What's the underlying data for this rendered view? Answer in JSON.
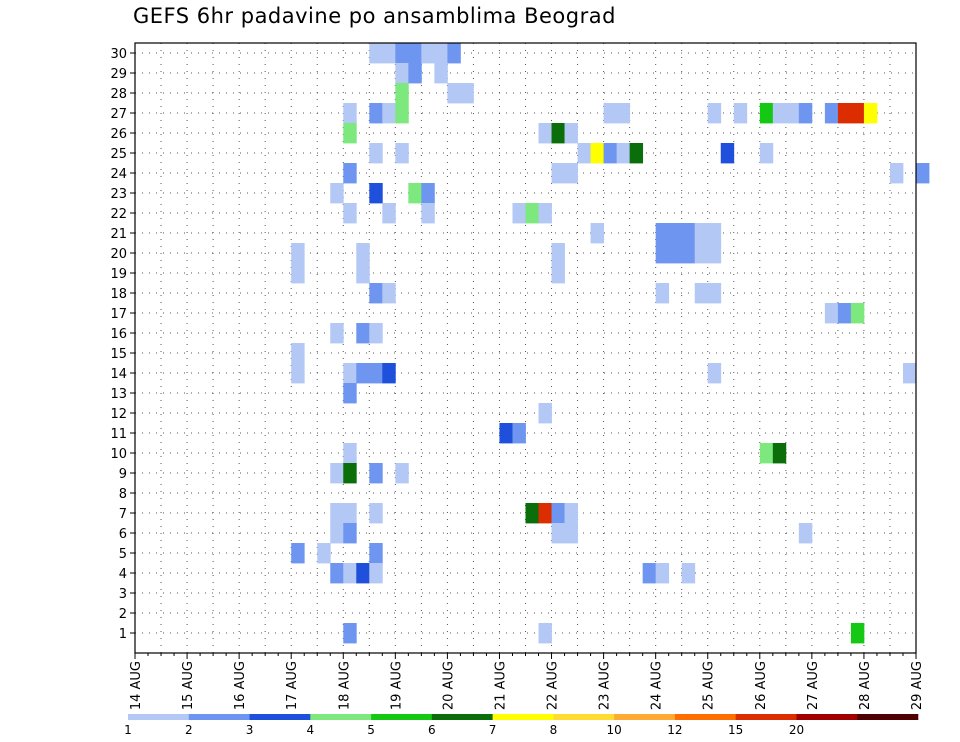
{
  "chart_data": {
    "type": "heatmap",
    "title": "GEFS 6hr padavine po ansamblima Beograd",
    "xlabel": "",
    "ylabel": "",
    "x_ticks": [
      "14 AUG",
      "15 AUG",
      "16 AUG",
      "17 AUG",
      "18 AUG",
      "19 AUG",
      "20 AUG",
      "21 AUG",
      "22 AUG",
      "23 AUG",
      "24 AUG",
      "25 AUG",
      "26 AUG",
      "27 AUG",
      "28 AUG",
      "29 AUG"
    ],
    "x_unit": "6-hour step (4 steps per day) starting 14 AUG",
    "y_ticks": [
      1,
      2,
      3,
      4,
      5,
      6,
      7,
      8,
      9,
      10,
      11,
      12,
      13,
      14,
      15,
      16,
      17,
      18,
      19,
      20,
      21,
      22,
      23,
      24,
      25,
      26,
      27,
      28,
      29,
      30
    ],
    "grid": true,
    "colorbar": {
      "labels": [
        "1",
        "2",
        "3",
        "4",
        "5",
        "6",
        "7",
        "8",
        "10",
        "12",
        "15",
        "20"
      ],
      "colors": [
        "#b4c8f5",
        "#6e96f0",
        "#1e50dc",
        "#7de87d",
        "#14c814",
        "#0a6e0a",
        "#ffff00",
        "#ffdc32",
        "#ffaa32",
        "#ff6e00",
        "#dc2d00",
        "#a00000",
        "#500000"
      ]
    },
    "cells": [
      {
        "member": 30,
        "step": 18,
        "cls": 1
      },
      {
        "member": 30,
        "step": 19,
        "cls": 1
      },
      {
        "member": 30,
        "step": 20,
        "cls": 2
      },
      {
        "member": 30,
        "step": 21,
        "cls": 2
      },
      {
        "member": 30,
        "step": 22,
        "cls": 1
      },
      {
        "member": 30,
        "step": 23,
        "cls": 1
      },
      {
        "member": 30,
        "step": 24,
        "cls": 2
      },
      {
        "member": 29,
        "step": 20,
        "cls": 1
      },
      {
        "member": 29,
        "step": 21,
        "cls": 2
      },
      {
        "member": 29,
        "step": 23,
        "cls": 1
      },
      {
        "member": 28,
        "step": 20,
        "cls": 4
      },
      {
        "member": 28,
        "step": 24,
        "cls": 1
      },
      {
        "member": 28,
        "step": 25,
        "cls": 1
      },
      {
        "member": 27,
        "step": 16,
        "cls": 1
      },
      {
        "member": 27,
        "step": 18,
        "cls": 2
      },
      {
        "member": 27,
        "step": 19,
        "cls": 1
      },
      {
        "member": 27,
        "step": 20,
        "cls": 4
      },
      {
        "member": 27,
        "step": 36,
        "cls": 1
      },
      {
        "member": 27,
        "step": 37,
        "cls": 1
      },
      {
        "member": 27,
        "step": 44,
        "cls": 1
      },
      {
        "member": 27,
        "step": 46,
        "cls": 1
      },
      {
        "member": 27,
        "step": 48,
        "cls": 5
      },
      {
        "member": 27,
        "step": 49,
        "cls": 1
      },
      {
        "member": 27,
        "step": 50,
        "cls": 1
      },
      {
        "member": 27,
        "step": 51,
        "cls": 2
      },
      {
        "member": 27,
        "step": 53,
        "cls": 2
      },
      {
        "member": 27,
        "step": 54,
        "cls": 11
      },
      {
        "member": 27,
        "step": 55,
        "cls": 11
      },
      {
        "member": 27,
        "step": 56,
        "cls": 7
      },
      {
        "member": 26,
        "step": 16,
        "cls": 4
      },
      {
        "member": 26,
        "step": 31,
        "cls": 1
      },
      {
        "member": 26,
        "step": 32,
        "cls": 6
      },
      {
        "member": 26,
        "step": 33,
        "cls": 1
      },
      {
        "member": 25,
        "step": 18,
        "cls": 1
      },
      {
        "member": 25,
        "step": 20,
        "cls": 1
      },
      {
        "member": 25,
        "step": 34,
        "cls": 1
      },
      {
        "member": 25,
        "step": 35,
        "cls": 7
      },
      {
        "member": 25,
        "step": 36,
        "cls": 2
      },
      {
        "member": 25,
        "step": 37,
        "cls": 1
      },
      {
        "member": 25,
        "step": 38,
        "cls": 6
      },
      {
        "member": 25,
        "step": 45,
        "cls": 3
      },
      {
        "member": 25,
        "step": 48,
        "cls": 1
      },
      {
        "member": 24,
        "step": 16,
        "cls": 2
      },
      {
        "member": 24,
        "step": 32,
        "cls": 1
      },
      {
        "member": 24,
        "step": 33,
        "cls": 1
      },
      {
        "member": 24,
        "step": 58,
        "cls": 1
      },
      {
        "member": 24,
        "step": 60,
        "cls": 2
      },
      {
        "member": 23,
        "step": 15,
        "cls": 1
      },
      {
        "member": 23,
        "step": 18,
        "cls": 3
      },
      {
        "member": 23,
        "step": 21,
        "cls": 4
      },
      {
        "member": 23,
        "step": 22,
        "cls": 2
      },
      {
        "member": 22,
        "step": 16,
        "cls": 1
      },
      {
        "member": 22,
        "step": 19,
        "cls": 1
      },
      {
        "member": 22,
        "step": 22,
        "cls": 1
      },
      {
        "member": 22,
        "step": 29,
        "cls": 1
      },
      {
        "member": 22,
        "step": 30,
        "cls": 4
      },
      {
        "member": 22,
        "step": 31,
        "cls": 1
      },
      {
        "member": 21,
        "step": 35,
        "cls": 1
      },
      {
        "member": 21,
        "step": 40,
        "cls": 2
      },
      {
        "member": 21,
        "step": 41,
        "cls": 2
      },
      {
        "member": 21,
        "step": 42,
        "cls": 2
      },
      {
        "member": 21,
        "step": 43,
        "cls": 1
      },
      {
        "member": 21,
        "step": 44,
        "cls": 1
      },
      {
        "member": 20,
        "step": 12,
        "cls": 1
      },
      {
        "member": 20,
        "step": 17,
        "cls": 1
      },
      {
        "member": 20,
        "step": 32,
        "cls": 1
      },
      {
        "member": 20,
        "step": 40,
        "cls": 2
      },
      {
        "member": 20,
        "step": 41,
        "cls": 2
      },
      {
        "member": 20,
        "step": 42,
        "cls": 2
      },
      {
        "member": 20,
        "step": 43,
        "cls": 1
      },
      {
        "member": 20,
        "step": 44,
        "cls": 1
      },
      {
        "member": 19,
        "step": 12,
        "cls": 1
      },
      {
        "member": 19,
        "step": 17,
        "cls": 1
      },
      {
        "member": 19,
        "step": 32,
        "cls": 1
      },
      {
        "member": 18,
        "step": 18,
        "cls": 2
      },
      {
        "member": 18,
        "step": 19,
        "cls": 1
      },
      {
        "member": 18,
        "step": 40,
        "cls": 1
      },
      {
        "member": 18,
        "step": 43,
        "cls": 1
      },
      {
        "member": 18,
        "step": 44,
        "cls": 1
      },
      {
        "member": 17,
        "step": 53,
        "cls": 1
      },
      {
        "member": 17,
        "step": 54,
        "cls": 2
      },
      {
        "member": 17,
        "step": 55,
        "cls": 4
      },
      {
        "member": 16,
        "step": 15,
        "cls": 1
      },
      {
        "member": 16,
        "step": 17,
        "cls": 2
      },
      {
        "member": 16,
        "step": 18,
        "cls": 1
      },
      {
        "member": 15,
        "step": 12,
        "cls": 1
      },
      {
        "member": 14,
        "step": 12,
        "cls": 1
      },
      {
        "member": 14,
        "step": 16,
        "cls": 1
      },
      {
        "member": 14,
        "step": 17,
        "cls": 2
      },
      {
        "member": 14,
        "step": 18,
        "cls": 2
      },
      {
        "member": 14,
        "step": 19,
        "cls": 3
      },
      {
        "member": 14,
        "step": 44,
        "cls": 1
      },
      {
        "member": 14,
        "step": 59,
        "cls": 1
      },
      {
        "member": 13,
        "step": 16,
        "cls": 2
      },
      {
        "member": 12,
        "step": 31,
        "cls": 1
      },
      {
        "member": 11,
        "step": 28,
        "cls": 3
      },
      {
        "member": 11,
        "step": 29,
        "cls": 2
      },
      {
        "member": 10,
        "step": 16,
        "cls": 1
      },
      {
        "member": 10,
        "step": 48,
        "cls": 4
      },
      {
        "member": 10,
        "step": 49,
        "cls": 6
      },
      {
        "member": 9,
        "step": 15,
        "cls": 1
      },
      {
        "member": 9,
        "step": 16,
        "cls": 6
      },
      {
        "member": 9,
        "step": 18,
        "cls": 2
      },
      {
        "member": 9,
        "step": 20,
        "cls": 1
      },
      {
        "member": 7,
        "step": 15,
        "cls": 1
      },
      {
        "member": 7,
        "step": 16,
        "cls": 1
      },
      {
        "member": 7,
        "step": 18,
        "cls": 1
      },
      {
        "member": 7,
        "step": 30,
        "cls": 6
      },
      {
        "member": 7,
        "step": 31,
        "cls": 11
      },
      {
        "member": 7,
        "step": 32,
        "cls": 2
      },
      {
        "member": 7,
        "step": 33,
        "cls": 1
      },
      {
        "member": 6,
        "step": 15,
        "cls": 1
      },
      {
        "member": 6,
        "step": 16,
        "cls": 2
      },
      {
        "member": 6,
        "step": 32,
        "cls": 1
      },
      {
        "member": 6,
        "step": 33,
        "cls": 1
      },
      {
        "member": 6,
        "step": 51,
        "cls": 1
      },
      {
        "member": 5,
        "step": 12,
        "cls": 2
      },
      {
        "member": 5,
        "step": 14,
        "cls": 1
      },
      {
        "member": 5,
        "step": 18,
        "cls": 2
      },
      {
        "member": 4,
        "step": 15,
        "cls": 2
      },
      {
        "member": 4,
        "step": 16,
        "cls": 1
      },
      {
        "member": 4,
        "step": 17,
        "cls": 3
      },
      {
        "member": 4,
        "step": 18,
        "cls": 1
      },
      {
        "member": 4,
        "step": 39,
        "cls": 2
      },
      {
        "member": 4,
        "step": 40,
        "cls": 1
      },
      {
        "member": 4,
        "step": 42,
        "cls": 1
      },
      {
        "member": 1,
        "step": 16,
        "cls": 2
      },
      {
        "member": 1,
        "step": 31,
        "cls": 1
      },
      {
        "member": 1,
        "step": 55,
        "cls": 5
      }
    ]
  }
}
